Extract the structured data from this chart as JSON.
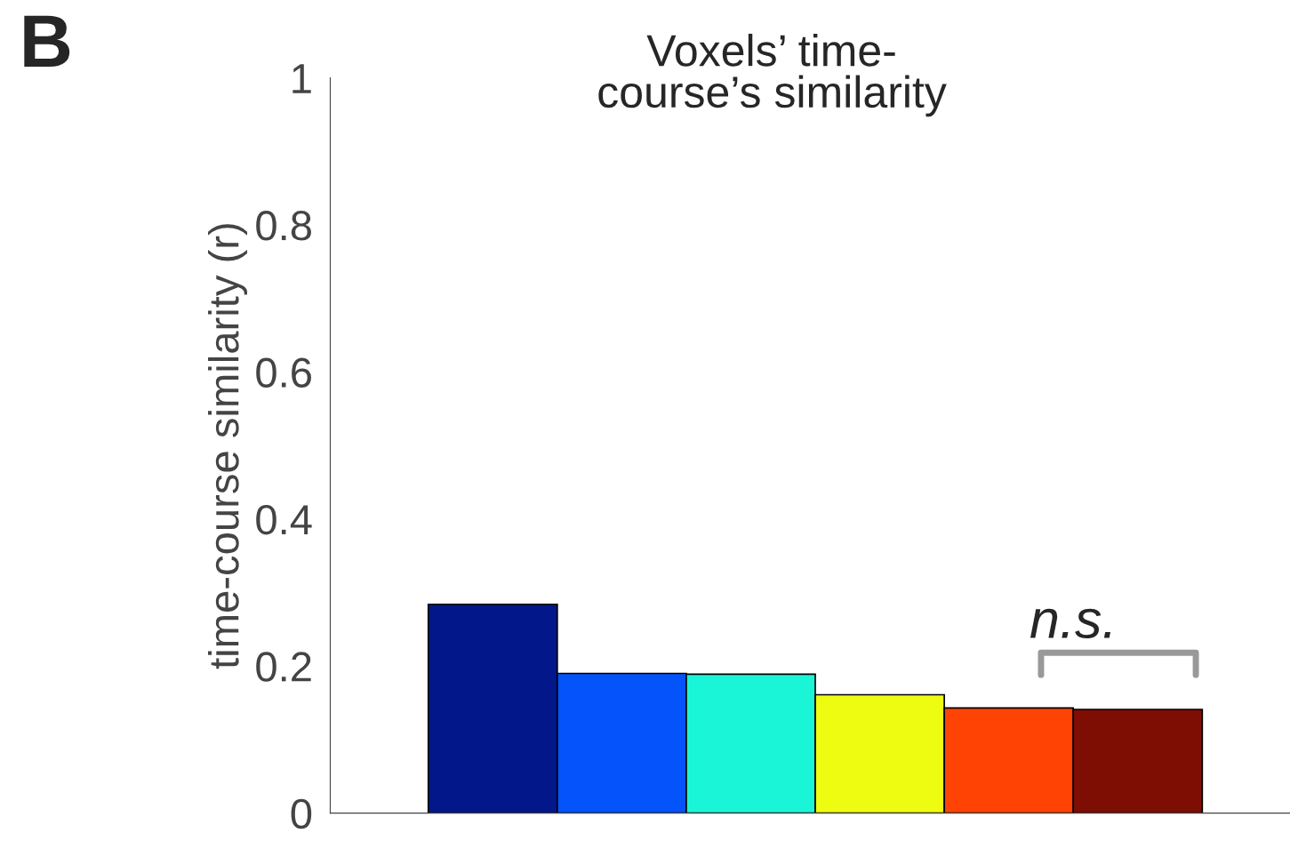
{
  "chart_data": {
    "type": "bar",
    "title": "Voxels’ time-\ncourse’s similarity",
    "ylabel": "time-course similarity (r)",
    "categories": [
      null,
      null,
      null,
      null,
      null,
      null
    ],
    "values": [
      0.284,
      0.19,
      0.189,
      0.161,
      0.143,
      0.141
    ],
    "colors": [
      "#02188a",
      "#0453fb",
      "#1af5d8",
      "#eefc12",
      "#fe4304",
      "#7e0d03"
    ],
    "ylim": [
      0,
      1
    ],
    "yticks": [
      0,
      0.2,
      0.4,
      0.6,
      0.8,
      1
    ],
    "grid": false,
    "annotations": [
      "B",
      "n.s."
    ]
  }
}
